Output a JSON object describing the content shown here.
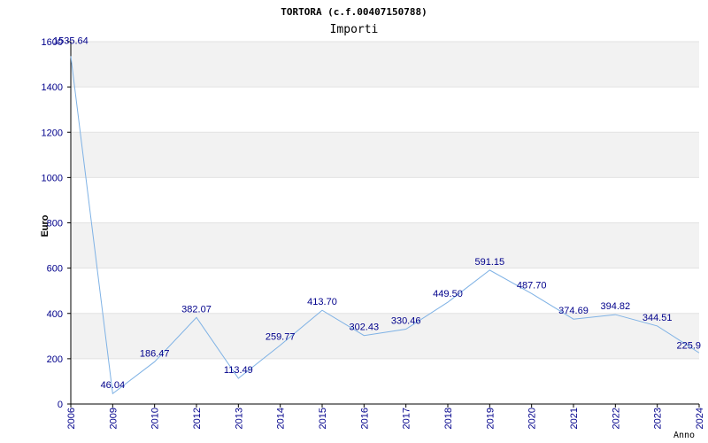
{
  "chart_data": {
    "type": "line",
    "title": "TORTORA (c.f.00407150788)",
    "subtitle": "Importi",
    "ylabel": "Euro",
    "xlabel": "Anno",
    "ylim": [
      0,
      1600
    ],
    "yticks": [
      0,
      200,
      400,
      600,
      800,
      1000,
      1200,
      1400,
      1600
    ],
    "grid": "horizontal alternating bands",
    "colors": {
      "line": "#7fb2e5",
      "band": "#f2f2f2",
      "tick_text": "#00008b"
    },
    "categories": [
      "2006",
      "2009",
      "2010",
      "2012",
      "2013",
      "2014",
      "2015",
      "2016",
      "2017",
      "2018",
      "2019",
      "2020",
      "2021",
      "2022",
      "2023",
      "2024"
    ],
    "series": [
      {
        "values": [
          1535.64,
          46.04,
          186.47,
          382.07,
          113.49,
          259.77,
          413.7,
          302.43,
          330.46,
          449.5,
          591.15,
          487.7,
          374.69,
          394.82,
          344.51,
          225.9
        ],
        "labels": [
          "1535.64",
          "46.04",
          "186.47",
          "382.07",
          "113.49",
          "259.77",
          "413.70",
          "302.43",
          "330.46",
          "449.50",
          "591.15",
          "487.70",
          "374.69",
          "394.82",
          "344.51",
          "225.9"
        ]
      }
    ]
  }
}
